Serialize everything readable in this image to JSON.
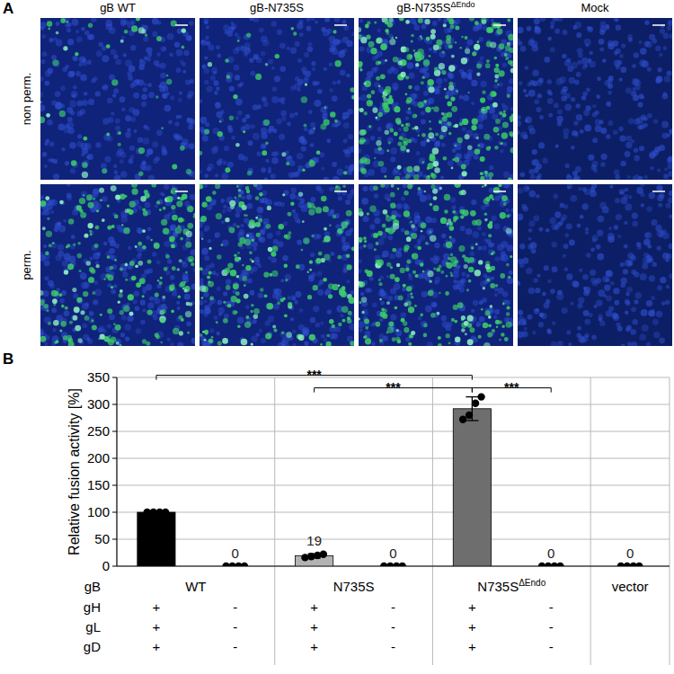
{
  "panel_labels": [
    "A",
    "B"
  ],
  "panel_a": {
    "columns": [
      {
        "text": "gB WT"
      },
      {
        "text": "gB-N735S"
      },
      {
        "text": "gB-N735S",
        "sup": "ΔEndo"
      },
      {
        "text": "Mock"
      }
    ],
    "rows": [
      "non perm.",
      "perm."
    ]
  },
  "chart_data": {
    "type": "bar",
    "y_label": "Relative fusion activity [%]",
    "categories": [
      null,
      null,
      null,
      null,
      null,
      null,
      null
    ],
    "values": [
      100,
      0,
      19,
      0,
      292,
      0,
      0
    ],
    "errors": [
      0,
      0,
      4,
      0,
      22,
      0,
      0
    ],
    "points": [
      [
        100,
        100,
        100,
        100
      ],
      [
        0,
        0,
        0,
        0
      ],
      [
        16,
        18,
        20,
        22
      ],
      [
        0,
        0,
        0,
        0
      ],
      [
        272,
        280,
        302,
        314
      ],
      [
        0,
        0,
        0,
        0
      ],
      [
        0,
        0,
        0,
        0
      ]
    ],
    "colors": [
      "#000000",
      "#000000",
      "#b3b3b3",
      "#b3b3b3",
      "#6e6e6e",
      "#6e6e6e",
      "#6e6e6e"
    ],
    "data_labels": true,
    "value_labels": [
      null,
      "0",
      "19",
      "0",
      null,
      "0",
      "0"
    ],
    "ylim": [
      0,
      350
    ],
    "yticks": [
      0,
      50,
      100,
      150,
      200,
      250,
      300,
      350
    ],
    "grid": true,
    "significance": [
      {
        "from": 0,
        "to": 4,
        "label": "***"
      },
      {
        "from": 2,
        "to": 4,
        "label": "***"
      },
      {
        "from": 4,
        "to": 5,
        "label": "***"
      }
    ],
    "table": {
      "gB": {
        "label": "gB",
        "groups": [
          {
            "text": "WT",
            "start": 0,
            "end": 1
          },
          {
            "text": "N735S",
            "start": 2,
            "end": 3
          },
          {
            "text": "N735S",
            "sup": "ΔEndo",
            "start": 4,
            "end": 5
          },
          {
            "text": "vector",
            "start": 6,
            "end": 6
          }
        ]
      },
      "rows": [
        {
          "label": "gH",
          "cells": [
            "+",
            "-",
            "+",
            "-",
            "+",
            "-",
            null
          ]
        },
        {
          "label": "gL",
          "cells": [
            "+",
            "-",
            "+",
            "-",
            "+",
            "-",
            null
          ]
        },
        {
          "label": "gD",
          "cells": [
            "+",
            "-",
            "+",
            "-",
            "+",
            "-",
            null
          ]
        }
      ]
    }
  }
}
